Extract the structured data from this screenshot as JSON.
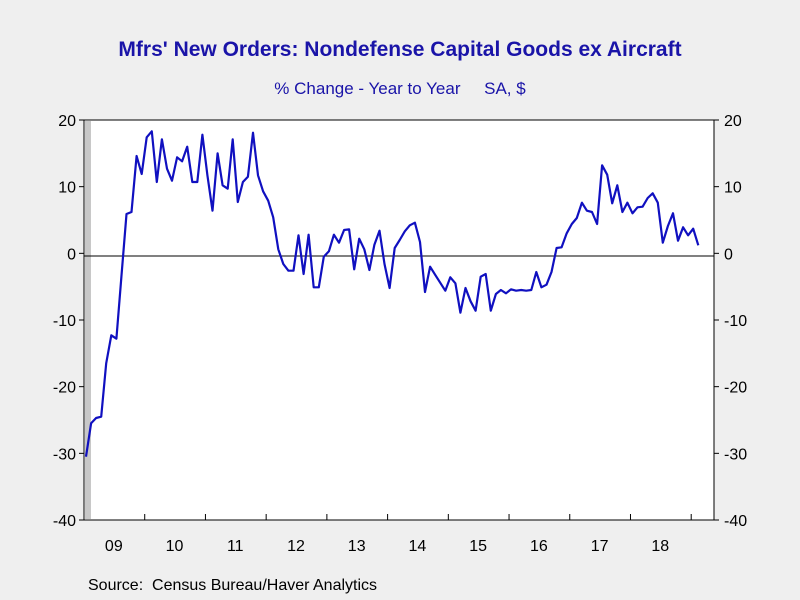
{
  "title": "Mfrs' New Orders: Nondefense Capital Goods ex Aircraft",
  "subtitle": "% Change - Year to Year     SA, $",
  "source": "Source:  Census Bureau/Haver Analytics",
  "colors": {
    "line": "#1010c0",
    "background": "#efefef",
    "plot": "#ffffff",
    "text": "#1a14a8"
  },
  "chart_data": {
    "type": "line",
    "title": "Mfrs' New Orders: Nondefense Capital Goods ex Aircraft",
    "subtitle": "% Change - Year to Year     SA, $",
    "xlabel": "",
    "ylabel": "",
    "ylim": [
      -40,
      20
    ],
    "yticks": [
      20,
      10,
      0,
      -10,
      -20,
      -30,
      -40
    ],
    "xlim": [
      "2009-01",
      "2019-04"
    ],
    "xtick_labels": [
      "09",
      "10",
      "11",
      "12",
      "13",
      "14",
      "15",
      "16",
      "17",
      "18"
    ],
    "zero_line": true,
    "grid": false,
    "legend": "none",
    "series": [
      {
        "start": "2009-01",
        "frequency": "monthly",
        "values": [
          -30.5,
          -25.5,
          -24.7,
          -24.5,
          -16.5,
          -12.3,
          -12.8,
          -3.5,
          5.9,
          6.2,
          14.6,
          11.9,
          17.4,
          18.3,
          10.7,
          17.1,
          12.7,
          10.9,
          14.4,
          13.8,
          16.0,
          10.7,
          10.7,
          17.8,
          11.7,
          6.4,
          15.0,
          10.2,
          9.7,
          17.1,
          7.7,
          10.7,
          11.5,
          18.1,
          11.7,
          9.3,
          7.9,
          5.4,
          0.6,
          -1.6,
          -2.6,
          -2.6,
          2.7,
          -3.1,
          2.8,
          -5.1,
          -5.1,
          -0.5,
          0.3,
          2.8,
          1.6,
          3.5,
          3.6,
          -2.4,
          2.2,
          0.6,
          -2.5,
          1.3,
          3.4,
          -1.6,
          -5.2,
          0.8,
          2.0,
          3.3,
          4.2,
          4.6,
          1.7,
          -5.8,
          -2.0,
          -3.2,
          -4.4,
          -5.6,
          -3.6,
          -4.5,
          -8.9,
          -5.2,
          -7.2,
          -8.6,
          -3.5,
          -3.1,
          -8.6,
          -6.1,
          -5.5,
          -6.0,
          -5.4,
          -5.6,
          -5.5,
          -5.6,
          -5.5,
          -2.8,
          -5.1,
          -4.7,
          -2.8,
          0.8,
          0.9,
          3.0,
          4.4,
          5.3,
          7.6,
          6.4,
          6.2,
          4.4,
          13.2,
          11.8,
          7.5,
          10.2,
          6.2,
          7.6,
          6.0,
          6.9,
          7.0,
          8.3,
          9.0,
          7.6,
          1.6,
          4.1,
          6.0,
          1.9,
          3.9,
          2.7,
          3.7,
          1.2
        ]
      }
    ]
  }
}
